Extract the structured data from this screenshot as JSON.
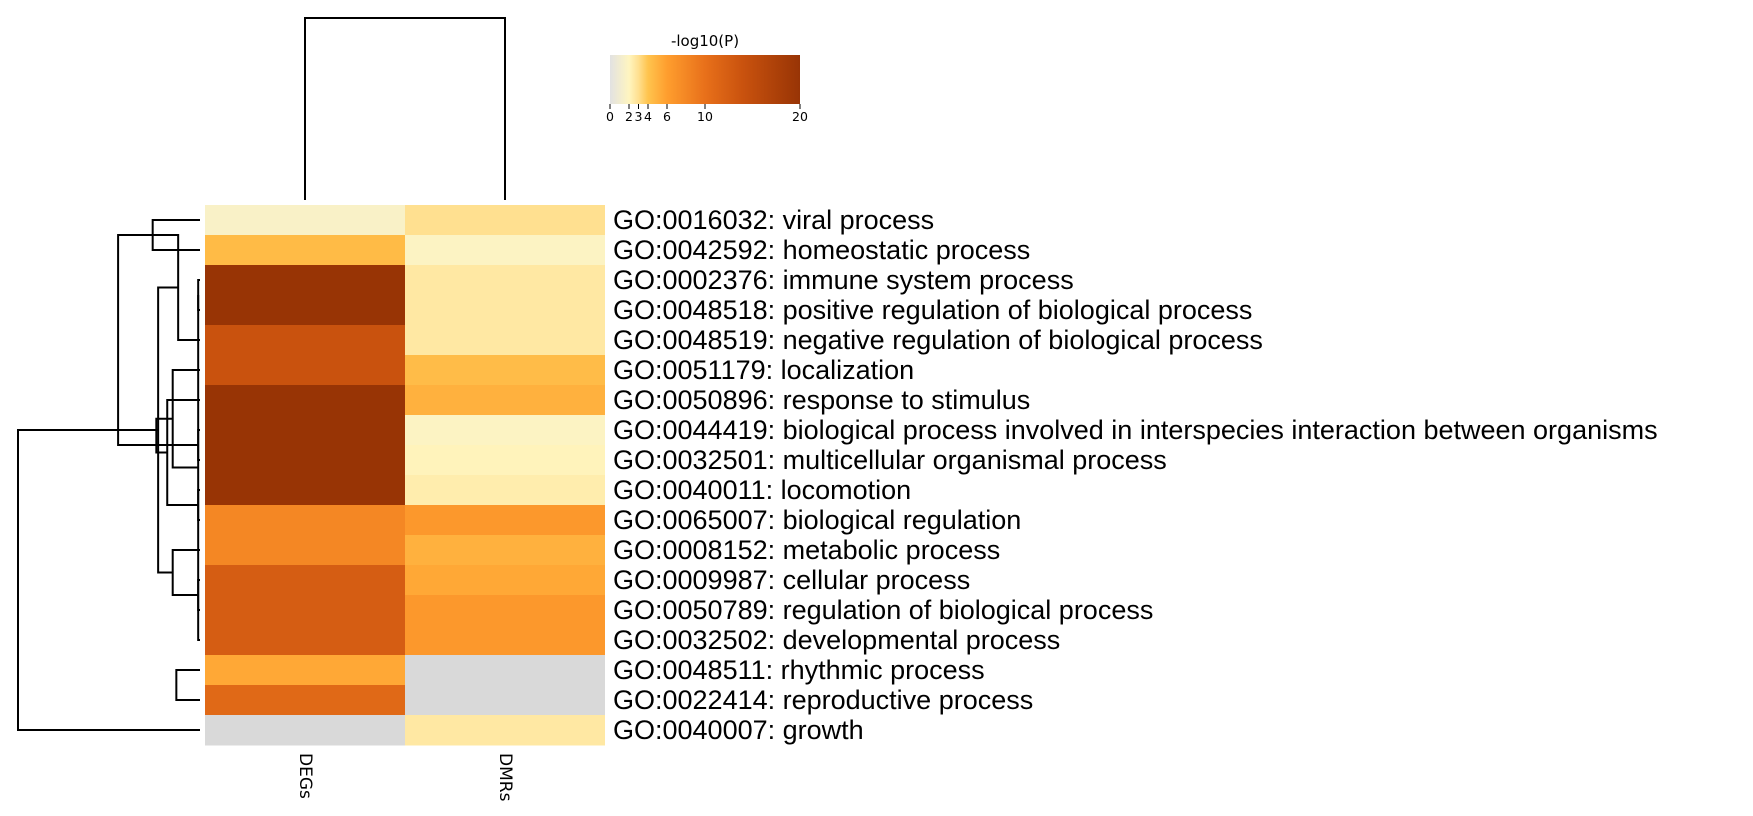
{
  "chart_data": {
    "type": "heatmap",
    "columns": [
      "DEGs",
      "DMRs"
    ],
    "rows": [
      {
        "label": "GO:0016032: viral process",
        "values": [
          1.6,
          3.0
        ]
      },
      {
        "label": "GO:0042592: homeostatic process",
        "values": [
          4.5,
          1.8
        ]
      },
      {
        "label": "GO:0002376: immune system process",
        "values": [
          20,
          2.6
        ]
      },
      {
        "label": "GO:0048518: positive regulation of biological process",
        "values": [
          20,
          2.6
        ]
      },
      {
        "label": "GO:0048519: negative regulation of biological process",
        "values": [
          14,
          2.6
        ]
      },
      {
        "label": "GO:0051179: localization",
        "values": [
          14,
          4.4
        ]
      },
      {
        "label": "GO:0050896: response to stimulus",
        "values": [
          20,
          5.0
        ]
      },
      {
        "label": "GO:0044419: biological process involved in interspecies interaction between organisms",
        "values": [
          20,
          1.8
        ]
      },
      {
        "label": "GO:0032501: multicellular organismal process",
        "values": [
          20,
          2.1
        ]
      },
      {
        "label": "GO:0040011: locomotion",
        "values": [
          20,
          2.4
        ]
      },
      {
        "label": "GO:0065007: biological regulation",
        "values": [
          8,
          6.5
        ]
      },
      {
        "label": "GO:0008152: metabolic process",
        "values": [
          8,
          5.0
        ]
      },
      {
        "label": "GO:0009987: cellular process",
        "values": [
          12.5,
          5.5
        ]
      },
      {
        "label": "GO:0050789: regulation of biological process",
        "values": [
          12.5,
          6.5
        ]
      },
      {
        "label": "GO:0032502: developmental process",
        "values": [
          12.5,
          6.5
        ]
      },
      {
        "label": "GO:0048511: rhythmic process",
        "values": [
          5.5,
          null
        ]
      },
      {
        "label": "GO:0022414: reproductive process",
        "values": [
          11,
          null
        ]
      },
      {
        "label": "GO:0040007: growth",
        "values": [
          null,
          2.6
        ]
      }
    ],
    "colorbar": {
      "title": "-log10(P)",
      "range": [
        0,
        20
      ],
      "ticks": [
        0,
        2,
        3,
        4,
        6,
        10,
        20
      ],
      "colors": [
        {
          "value": 0,
          "color": "#e2e2e2"
        },
        {
          "value": 2,
          "color": "#fff5c0"
        },
        {
          "value": 3,
          "color": "#ffe090"
        },
        {
          "value": 4,
          "color": "#ffc44e"
        },
        {
          "value": 6,
          "color": "#ff9e2e"
        },
        {
          "value": 10,
          "color": "#e8701a"
        },
        {
          "value": 14,
          "color": "#c9520e"
        },
        {
          "value": 20,
          "color": "#983405"
        }
      ]
    },
    "missing_color": "#d9d9d9",
    "col_dendrogram": [
      {
        "left": 0,
        "right": 1,
        "height": 1.0
      }
    ],
    "row_dendrogram": [
      {
        "left": 0,
        "right": 1,
        "height": 0.26
      },
      {
        "left": 2,
        "right": 3,
        "height": 0.01
      },
      {
        "left": 12,
        "right": 13,
        "height": 0.01
      },
      {
        "left": 9,
        "right": 10,
        "height": 0.01
      },
      {
        "left": 19,
        "right": 14,
        "height": 0.01
      },
      {
        "left": 11,
        "right": 20,
        "height": 0.15
      },
      {
        "left": 18,
        "right": 4,
        "height": 0.12
      },
      {
        "left": 22,
        "right": 5,
        "height": 0.15
      },
      {
        "left": 6,
        "right": 21,
        "height": 0.18
      },
      {
        "left": 8,
        "right": 7,
        "height": 0.01
      },
      {
        "left": 15,
        "right": 16,
        "height": 0.13
      },
      {
        "left": 23,
        "right": 24,
        "height": 0.23
      },
      {
        "left": 25,
        "right": 26,
        "height": 0.24
      },
      {
        "left": 18,
        "right": 27,
        "height": 0.45
      },
      {
        "left": 29,
        "right": 17,
        "height": 1.0
      }
    ]
  }
}
